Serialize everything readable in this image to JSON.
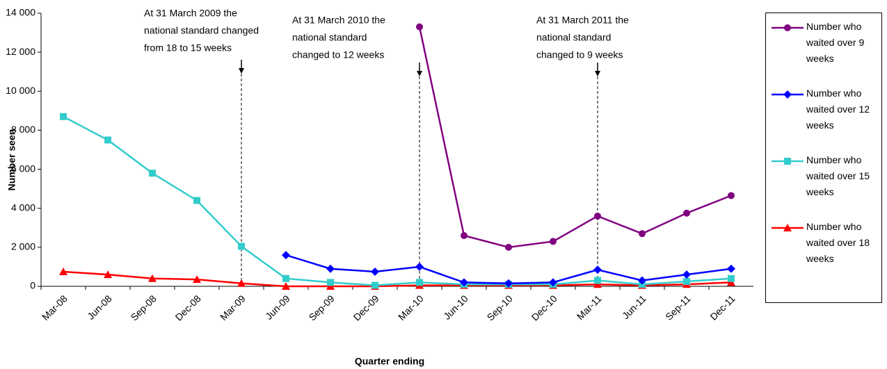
{
  "chart_data": {
    "type": "line",
    "y_label": "Number seen",
    "x_label": "Quarter ending",
    "categories": [
      "Mar-08",
      "Jun-08",
      "Sep-08",
      "Dec-08",
      "Mar-09",
      "Jun-09",
      "Sep-09",
      "Dec-09",
      "Mar-10",
      "Jun-10",
      "Sep-10",
      "Dec-10",
      "Mar-11",
      "Jun-11",
      "Sep-11",
      "Dec-11"
    ],
    "series": [
      {
        "name": "Number who waited over 9 weeks",
        "color": "#800080",
        "marker": "circle",
        "values": [
          null,
          null,
          null,
          null,
          null,
          null,
          null,
          null,
          13300,
          2600,
          2000,
          2300,
          3600,
          2700,
          3750,
          4650
        ]
      },
      {
        "name": "Number who waited over 12 weeks",
        "color": "#0000ff",
        "marker": "diamond",
        "values": [
          null,
          null,
          null,
          null,
          null,
          1600,
          900,
          750,
          1000,
          200,
          150,
          200,
          850,
          300,
          600,
          900
        ]
      },
      {
        "name": "Number who waited over 15 weeks",
        "color": "#33cccc",
        "marker": "square",
        "values": [
          8700,
          7500,
          5800,
          4400,
          2050,
          400,
          200,
          50,
          200,
          100,
          100,
          100,
          300,
          100,
          250,
          400
        ]
      },
      {
        "name": "Number who waited over 18 weeks",
        "color": "#ff0000",
        "marker": "triangle",
        "values": [
          750,
          600,
          400,
          350,
          150,
          0,
          0,
          0,
          50,
          50,
          50,
          50,
          100,
          50,
          100,
          200
        ]
      }
    ],
    "ylim": [
      0,
      14000
    ],
    "yticks": [
      0,
      {
        "value": 2000,
        "label": "2 000"
      },
      {
        "value": 4000,
        "label": "4 000"
      },
      {
        "value": 6000,
        "label": "6 000"
      },
      {
        "value": 8000,
        "label": "8 000"
      },
      {
        "value": 10000,
        "label": "10 000"
      },
      {
        "value": 12000,
        "label": "12 000"
      },
      {
        "value": 14000,
        "label": "14 000"
      }
    ],
    "annotations": [
      {
        "at": "Mar-09",
        "lines": [
          "At 31 March 2009 the",
          "national standard changed",
          "from 18 to 15 weeks"
        ]
      },
      {
        "at": "Mar-10",
        "lines": [
          "At 31 March 2010 the",
          "national standard",
          "changed to 12 weeks"
        ]
      },
      {
        "at": "Mar-11",
        "lines": [
          "At 31 March 2011 the",
          "national standard",
          "changed to 9 weeks"
        ]
      }
    ],
    "legend": "right"
  }
}
